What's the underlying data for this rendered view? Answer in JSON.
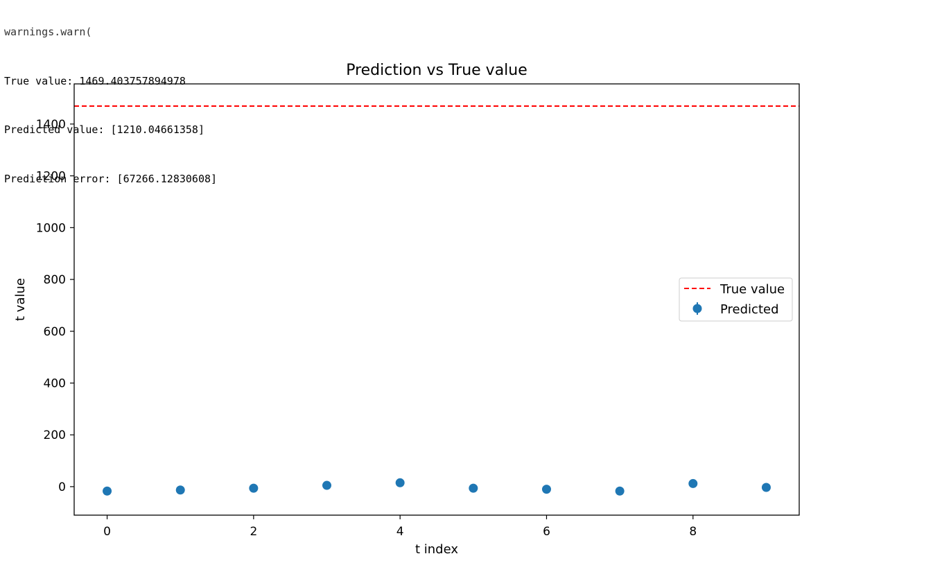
{
  "console": {
    "truncated_line": "warnings.warn(",
    "lines": [
      "True value: 1469.403757894978",
      "Predicted value: [1210.04661358]",
      "Prediction error: [67266.12830608]"
    ]
  },
  "chart_data": {
    "type": "scatter",
    "title": "Prediction vs True value",
    "xlabel": "t index",
    "ylabel": "t value",
    "xlim": [
      -0.45,
      9.45
    ],
    "ylim": [
      -110,
      1555
    ],
    "xticks": [
      0,
      2,
      4,
      6,
      8
    ],
    "yticks": [
      0,
      200,
      400,
      600,
      800,
      1000,
      1200,
      1400
    ],
    "legend_position": "center-right",
    "true_value": {
      "name": "True value",
      "y": 1469.4,
      "color": "#ff0000",
      "style": "dashed"
    },
    "predicted": {
      "name": "Predicted",
      "color": "#1f77b4",
      "x": [
        0,
        1,
        2,
        3,
        4,
        5,
        6,
        7,
        8,
        9
      ],
      "y": [
        -17,
        -13,
        -6,
        5,
        15,
        -6,
        -10,
        -17,
        12,
        -3
      ],
      "err": [
        4,
        6,
        4,
        4,
        5,
        6,
        7,
        4,
        10,
        5
      ]
    }
  }
}
